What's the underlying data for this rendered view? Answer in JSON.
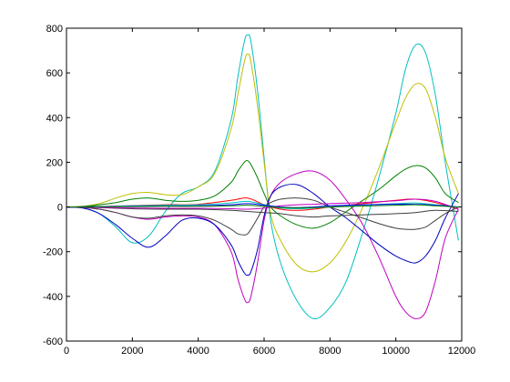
{
  "chart_data": {
    "type": "line",
    "title": "",
    "xlabel": "",
    "ylabel": "",
    "xlim": [
      0,
      12000
    ],
    "ylim": [
      -600,
      800
    ],
    "grid": false,
    "legend": "none",
    "x_ticks": [
      0,
      2000,
      4000,
      6000,
      8000,
      10000,
      12000
    ],
    "x_tick_labels": [
      "0",
      "2000",
      "4000",
      "6000",
      "8000",
      "10000",
      "12000"
    ],
    "y_ticks": [
      -600,
      -400,
      -200,
      0,
      200,
      400,
      600,
      800
    ],
    "y_tick_labels": [
      "-600",
      "-400",
      "-200",
      "0",
      "200",
      "400",
      "600",
      "800"
    ],
    "series": [
      {
        "color": "#00bfbf",
        "x": [
          0,
          500,
          1000,
          1500,
          2000,
          2500,
          3000,
          3500,
          4000,
          4500,
          5000,
          5200,
          5400,
          5500,
          5600,
          5800,
          6000,
          6200,
          6500,
          7000,
          7500,
          8000,
          8500,
          9000,
          9500,
          10000,
          10300,
          10600,
          10900,
          11200,
          11500,
          11900
        ],
        "y": [
          0,
          -5,
          -30,
          -90,
          -160,
          -130,
          -20,
          60,
          90,
          160,
          390,
          580,
          740,
          770,
          740,
          520,
          220,
          -60,
          -250,
          -420,
          -500,
          -450,
          -330,
          -110,
          140,
          420,
          620,
          725,
          690,
          500,
          200,
          -150
        ]
      },
      {
        "color": "#bfbf00",
        "x": [
          0,
          500,
          1000,
          1500,
          2000,
          2500,
          3000,
          3500,
          4000,
          4500,
          5000,
          5200,
          5400,
          5500,
          5600,
          5800,
          6000,
          6200,
          6500,
          7000,
          7500,
          8000,
          8500,
          9000,
          9500,
          10000,
          10300,
          10600,
          10900,
          11200,
          11500,
          11900
        ],
        "y": [
          0,
          3,
          15,
          40,
          60,
          65,
          55,
          55,
          90,
          150,
          350,
          500,
          650,
          685,
          650,
          450,
          200,
          -30,
          -150,
          -260,
          -290,
          -250,
          -150,
          0,
          180,
          380,
          490,
          550,
          530,
          400,
          220,
          60
        ]
      },
      {
        "color": "#007f00",
        "x": [
          0,
          500,
          1000,
          1500,
          2000,
          2500,
          3000,
          3500,
          4000,
          4500,
          5000,
          5200,
          5400,
          5500,
          5600,
          5800,
          6000,
          6200,
          6500,
          7000,
          7500,
          8000,
          8500,
          9000,
          9500,
          10000,
          10300,
          10600,
          10900,
          11200,
          11500,
          11900
        ],
        "y": [
          0,
          2,
          10,
          20,
          35,
          40,
          30,
          25,
          30,
          50,
          110,
          160,
          200,
          207,
          190,
          130,
          60,
          0,
          -40,
          -80,
          -95,
          -70,
          -20,
          30,
          80,
          140,
          170,
          185,
          175,
          130,
          60,
          20
        ]
      },
      {
        "color": "#bf00bf",
        "x": [
          0,
          500,
          1000,
          1500,
          2000,
          2500,
          3000,
          3500,
          4000,
          4500,
          5000,
          5200,
          5400,
          5500,
          5600,
          5800,
          6000,
          6200,
          6500,
          7000,
          7500,
          8000,
          8500,
          9000,
          9500,
          10000,
          10300,
          10600,
          10900,
          11200,
          11500,
          11900
        ],
        "y": [
          0,
          -2,
          -10,
          -25,
          -45,
          -55,
          -45,
          -40,
          -45,
          -80,
          -200,
          -320,
          -410,
          -428,
          -400,
          -250,
          -60,
          50,
          110,
          150,
          160,
          120,
          30,
          -80,
          -230,
          -400,
          -470,
          -500,
          -470,
          -330,
          -140,
          -10
        ]
      },
      {
        "color": "#0000bf",
        "x": [
          0,
          500,
          1000,
          1500,
          2000,
          2500,
          3000,
          3500,
          4000,
          4500,
          5000,
          5200,
          5400,
          5500,
          5600,
          5800,
          6000,
          6200,
          6500,
          7000,
          7500,
          8000,
          8500,
          9000,
          9500,
          10000,
          10300,
          10600,
          10900,
          11200,
          11500,
          11900
        ],
        "y": [
          0,
          -5,
          -30,
          -80,
          -140,
          -180,
          -130,
          -60,
          -50,
          -80,
          -170,
          -240,
          -295,
          -305,
          -290,
          -190,
          -40,
          50,
          90,
          100,
          60,
          0,
          -50,
          -110,
          -170,
          -220,
          -240,
          -250,
          -220,
          -150,
          -50,
          60
        ]
      },
      {
        "color": "#3f3f3f",
        "x": [
          0,
          500,
          1000,
          1500,
          2000,
          2500,
          3000,
          3500,
          4000,
          4500,
          5000,
          5200,
          5400,
          5500,
          5600,
          5800,
          6000,
          6200,
          6500,
          7000,
          7500,
          8000,
          8500,
          9000,
          9500,
          10000,
          10300,
          10600,
          10900,
          11200,
          11500,
          11900
        ],
        "y": [
          0,
          -2,
          -10,
          -25,
          -45,
          -50,
          -40,
          -35,
          -40,
          -60,
          -100,
          -120,
          -125,
          -120,
          -100,
          -50,
          0,
          20,
          35,
          40,
          30,
          0,
          -25,
          -50,
          -75,
          -95,
          -100,
          -100,
          -90,
          -60,
          -30,
          0
        ]
      },
      {
        "color": "#ff0000",
        "x": [
          0,
          1000,
          2000,
          3000,
          4000,
          5000,
          5500,
          6000,
          6500,
          7000,
          7500,
          8000,
          9000,
          10000,
          10600,
          11200,
          11900
        ],
        "y": [
          0,
          2,
          6,
          10,
          12,
          30,
          40,
          10,
          -10,
          -15,
          -10,
          0,
          15,
          30,
          35,
          20,
          -10
        ]
      },
      {
        "color": "#3f3f3f",
        "x": [
          0,
          1000,
          2000,
          3000,
          4000,
          5000,
          5500,
          6000,
          6500,
          7000,
          7500,
          8000,
          9000,
          10000,
          10600,
          11200,
          11900
        ],
        "y": [
          0,
          -3,
          -8,
          -10,
          -10,
          -15,
          -20,
          -25,
          -30,
          -40,
          -45,
          -40,
          -35,
          -30,
          -25,
          -15,
          -20
        ]
      },
      {
        "color": "#00bfbf",
        "x": [
          0,
          1000,
          2000,
          3000,
          4000,
          5000,
          5500,
          6000,
          6500,
          7000,
          7500,
          8000,
          9000,
          10000,
          10600,
          11200,
          11900
        ],
        "y": [
          0,
          2,
          5,
          8,
          10,
          18,
          25,
          10,
          -5,
          -8,
          -5,
          0,
          8,
          15,
          18,
          10,
          0
        ]
      },
      {
        "color": "#bf00bf",
        "x": [
          0,
          1000,
          2000,
          3000,
          4000,
          5000,
          5500,
          6000,
          6500,
          7000,
          7500,
          8000,
          9000,
          10000,
          10600,
          11200,
          11900
        ],
        "y": [
          0,
          -2,
          -4,
          -6,
          -6,
          -8,
          -10,
          -5,
          5,
          10,
          12,
          15,
          20,
          28,
          35,
          25,
          -10
        ]
      },
      {
        "color": "#0000ff",
        "x": [
          0,
          1000,
          2000,
          3000,
          4000,
          5000,
          5500,
          6000,
          6500,
          7000,
          7500,
          8000,
          9000,
          10000,
          10600,
          11200,
          11900
        ],
        "y": [
          0,
          1,
          3,
          4,
          5,
          10,
          15,
          8,
          0,
          -3,
          0,
          5,
          10,
          12,
          12,
          8,
          0
        ]
      },
      {
        "color": "#007f00",
        "x": [
          0,
          1000,
          2000,
          3000,
          4000,
          5000,
          5500,
          6000,
          6500,
          7000,
          7500,
          8000,
          9000,
          10000,
          10600,
          11200,
          11900
        ],
        "y": [
          0,
          1,
          2,
          3,
          3,
          5,
          8,
          3,
          -2,
          -4,
          -3,
          0,
          4,
          8,
          10,
          5,
          0
        ]
      }
    ]
  }
}
